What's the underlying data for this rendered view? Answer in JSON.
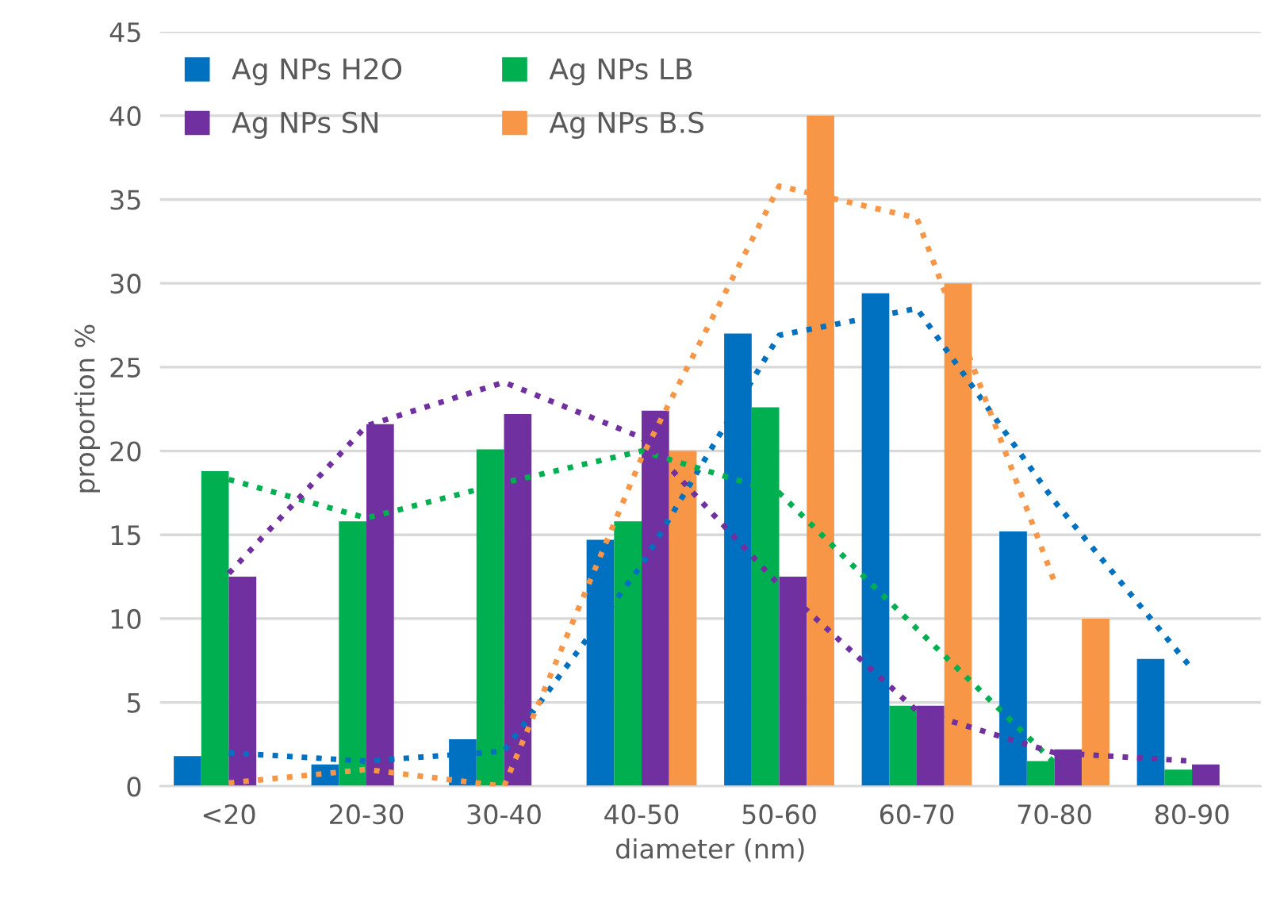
{
  "chart_data": {
    "type": "bar",
    "xlabel": "diameter (nm)",
    "ylabel": "proportion %",
    "categories": [
      "<20",
      "20-30",
      "30-40",
      "40-50",
      "50-60",
      "60-70",
      "70-80",
      "80-90"
    ],
    "series": [
      {
        "name": "Ag NPs H2O",
        "color": "#0070c0",
        "values": [
          1.8,
          1.3,
          2.8,
          14.7,
          27,
          29.4,
          15.2,
          7.6
        ]
      },
      {
        "name": "Ag NPs LB",
        "color": "#00b050",
        "values": [
          18.8,
          15.8,
          20.1,
          15.8,
          22.6,
          4.8,
          1.5,
          1.0
        ]
      },
      {
        "name": "Ag NPs SN",
        "color": "#7030a0",
        "values": [
          12.5,
          21.6,
          22.2,
          22.4,
          12.5,
          4.8,
          2.2,
          1.3
        ]
      },
      {
        "name": "Ag NPs B.S",
        "color": "#f79646",
        "values": [
          0,
          0,
          0,
          20,
          40,
          30,
          10,
          0
        ]
      },
      {
        "type": "line",
        "line_style": "dotted",
        "color": "#0070c0",
        "values": [
          2.0,
          1.5,
          2.1,
          13.2,
          26.9,
          28.5,
          17.0,
          7.0
        ]
      },
      {
        "type": "line",
        "line_style": "dotted",
        "color": "#00b050",
        "values": [
          18.3,
          16.0,
          18.1,
          20.0,
          17.5,
          9.4,
          1.4,
          null
        ]
      },
      {
        "type": "line",
        "line_style": "dotted",
        "color": "#7030a0",
        "values": [
          12.7,
          21.5,
          24.1,
          20.8,
          12.0,
          4.5,
          2.0,
          1.5
        ]
      },
      {
        "type": "line",
        "line_style": "dotted",
        "color": "#f79646",
        "values": [
          0.2,
          1.0,
          0,
          19.6,
          35.8,
          33.9,
          12.2,
          null
        ]
      }
    ],
    "ylim": [
      0,
      45
    ],
    "yticks": [
      0,
      5,
      10,
      15,
      20,
      25,
      30,
      35,
      40,
      45
    ],
    "grid": "y",
    "legend": "top left"
  }
}
